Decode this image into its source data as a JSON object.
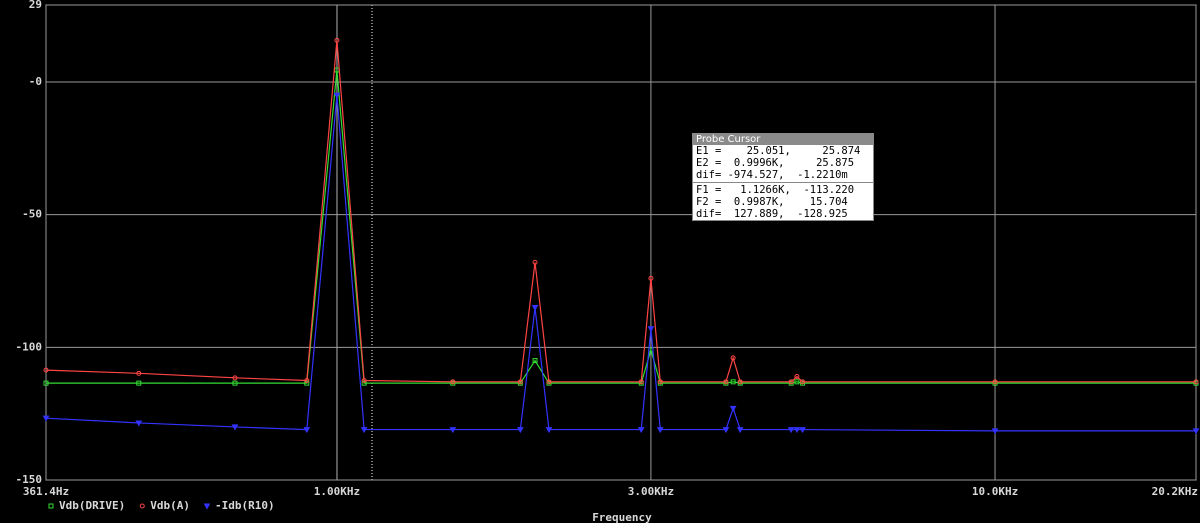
{
  "chart_data": {
    "type": "line",
    "xscale": "log",
    "grid": true,
    "xlabel": "Frequency",
    "x": [
      361.4,
      500,
      700,
      900,
      1000,
      1100,
      1500,
      1900,
      2000,
      2100,
      2900,
      3000,
      3100,
      3900,
      4000,
      4100,
      4900,
      5000,
      5100,
      10000,
      20200
    ],
    "series": [
      {
        "name": "Vdb(DRIVE)",
        "color": "#33dd33",
        "marker": "square",
        "values": [
          -113.5,
          -113.5,
          -113.5,
          -113.5,
          4.5,
          -113.5,
          -113.5,
          -113.5,
          -105,
          -113.5,
          -113.5,
          -101,
          -113.5,
          -113.5,
          -113,
          -113.5,
          -113.5,
          -113,
          -113.5,
          -113.5,
          -113.5
        ]
      },
      {
        "name": "Vdb(A)",
        "color": "#ff4444",
        "marker": "circle",
        "values": [
          -108.6,
          -109.8,
          -111.5,
          -112.5,
          15.7,
          -112.5,
          -113,
          -113,
          -68,
          -113,
          -113,
          -74,
          -113,
          -113,
          -104,
          -113,
          -113,
          -111,
          -113,
          -113,
          -113
        ]
      },
      {
        "name": "-Idb(R10)",
        "color": "#3333ff",
        "marker": "triangle",
        "values": [
          -126.7,
          -128.5,
          -130,
          -131,
          -5,
          -131,
          -131,
          -131,
          -85,
          -131,
          -131,
          -93,
          -131,
          -131,
          -123,
          -131,
          -131,
          -131,
          -131,
          -131.5,
          -131.5
        ]
      }
    ],
    "xlim": [
      361.4,
      20200
    ],
    "xticks": [
      {
        "value": 361.4,
        "label": "361.4Hz"
      },
      {
        "value": 1000,
        "label": "1.00KHz"
      },
      {
        "value": 3000,
        "label": "3.00KHz"
      },
      {
        "value": 10000,
        "label": "10.0KHz"
      },
      {
        "value": 20200,
        "label": "20.2KHz"
      }
    ],
    "ylim": [
      -150,
      29
    ],
    "yticks": [
      29,
      {
        "value": 0,
        "label": "-0"
      },
      -50,
      -100,
      -150
    ]
  },
  "probe_cursor": {
    "title": "Probe Cursor",
    "rows": [
      "E1 =    25.051,     25.874",
      "E2 =  0.9996K,     25.875",
      "dif= -974.527,  -1.2210m",
      "F1 =   1.1266K,  -113.220",
      "F2 =  0.9987K,    15.704",
      "dif=  127.889,  -128.925"
    ]
  }
}
